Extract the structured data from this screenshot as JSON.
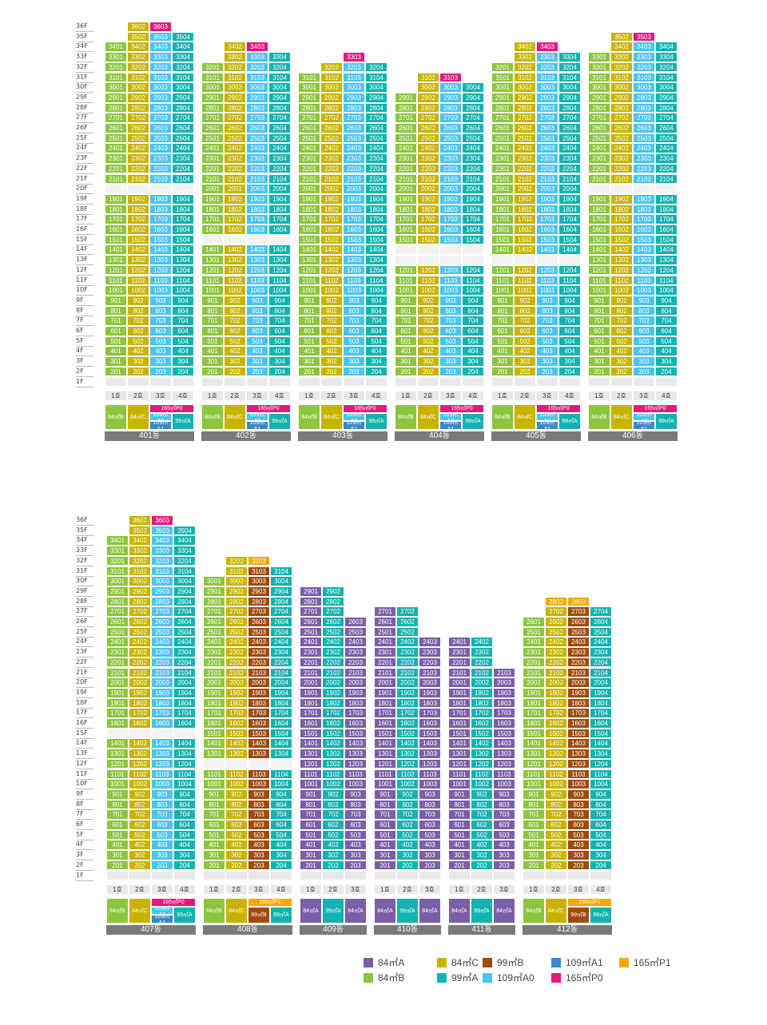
{
  "colors": {
    "84A": "#7b5ea8",
    "84B": "#8cc63f",
    "84C": "#c8b400",
    "99A": "#13b3b0",
    "99B": "#a04a0e",
    "109A0": "#4cc4ef",
    "109A1": "#3a88cc",
    "165P0": "#e5197d",
    "165P1": "#f5a800"
  },
  "floor_labels": [
    "36F",
    "35F",
    "34F",
    "33F",
    "32F",
    "31F",
    "30F",
    "29F",
    "28F",
    "27F",
    "26F",
    "25F",
    "24F",
    "23F",
    "22F",
    "21F",
    "20F",
    "19F",
    "18F",
    "17F",
    "16F",
    "15F",
    "14F",
    "13F",
    "12F",
    "11F",
    "10F",
    "9F",
    "8F",
    "7F",
    "6F",
    "5F",
    "4F",
    "3F",
    "2F",
    "1F"
  ],
  "unit_headers4": [
    "1호",
    "2호",
    "3호",
    "4호"
  ],
  "unit_headers3": [
    "1호",
    "2호",
    "3호"
  ],
  "top_row": {
    "buildings": [
      {
        "name": "401동",
        "top_floor": 35,
        "units": 4,
        "cols": [
          "84B",
          "84C",
          "109A0",
          "99A"
        ],
        "top": {
          "r35": [
            "",
            "3502",
            "3503",
            "3504"
          ],
          "r36": [
            "",
            "3602",
            "3603",
            ""
          ]
        },
        "types": [
          "84㎡B",
          "84㎡C",
          "109㎡A0|109㎡A1",
          "99㎡A"
        ],
        "p": "165㎡P0"
      },
      {
        "name": "402동",
        "top_floor": 34,
        "units": 4,
        "cols": [
          "84B",
          "84C",
          "109A0",
          "99A"
        ],
        "types": [
          "84㎡B",
          "84㎡C",
          "109㎡A0|109㎡A1",
          "99㎡A"
        ],
        "p": "165㎡P0"
      },
      {
        "name": "403동",
        "top_floor": 33,
        "units": 4,
        "cols": [
          "84B",
          "84C",
          "109A0",
          "99A"
        ],
        "types": [
          "84㎡B",
          "84㎡C",
          "109㎡A0|109㎡A1",
          "99㎡A"
        ],
        "p": "165㎡P0"
      },
      {
        "name": "404동",
        "top_floor": 32,
        "units": 4,
        "cols": [
          "84B",
          "84C",
          "109A0",
          "99A"
        ],
        "types": [
          "84㎡B",
          "84㎡C",
          "109㎡A0|109㎡A1",
          "99㎡A"
        ],
        "p": "165㎡P0"
      },
      {
        "name": "405동",
        "top_floor": 34,
        "units": 4,
        "cols": [
          "84B",
          "84C",
          "109A0",
          "99A"
        ],
        "types": [
          "84㎡B",
          "84㎡C",
          "109㎡A0|109㎡A1",
          "99㎡A"
        ],
        "p": "165㎡P0"
      },
      {
        "name": "406동",
        "top_floor": 35,
        "units": 4,
        "cols": [
          "84B",
          "84C",
          "109A0",
          "99A"
        ],
        "types": [
          "84㎡B",
          "84㎡C",
          "109㎡A0|109㎡A1",
          "99㎡A"
        ],
        "p": "165㎡P0"
      }
    ]
  },
  "bottom_row": {
    "buildings": [
      {
        "name": "407동",
        "types": [
          "84㎡B",
          "84㎡C",
          "109㎡A0|109㎡A1",
          "99㎡A"
        ],
        "p": "165㎡P0"
      },
      {
        "name": "408동",
        "types": [
          "84㎡B",
          "84㎡C",
          "99㎡B",
          "99㎡A"
        ],
        "p": "165㎡P1"
      },
      {
        "name": "409동",
        "types": [
          "84㎡A",
          "99㎡A",
          "84㎡A"
        ]
      },
      {
        "name": "410동",
        "types": [
          "84㎡A",
          "99㎡A",
          "84㎡A"
        ]
      },
      {
        "name": "411동",
        "types": [
          "84㎡A",
          "99㎡A",
          "84㎡A"
        ]
      },
      {
        "name": "412동",
        "types": [
          "84㎡B",
          "84㎡C",
          "99㎡B",
          "99㎡A"
        ],
        "p": "165㎡P1"
      }
    ]
  },
  "legend": [
    {
      "key": "84A",
      "label": "84㎡A"
    },
    {
      "key": "84C",
      "label": "84㎡C"
    },
    {
      "key": "99B",
      "label": "99㎡B"
    },
    {
      "key": "109A1",
      "label": "109㎡A1"
    },
    {
      "key": "165P1",
      "label": "165㎡P1"
    },
    {
      "key": "84B",
      "label": "84㎡B"
    },
    {
      "key": "99A",
      "label": "99㎡A"
    },
    {
      "key": "109A0",
      "label": "109㎡A0"
    },
    {
      "key": "165P0",
      "label": "165㎡P0"
    }
  ]
}
